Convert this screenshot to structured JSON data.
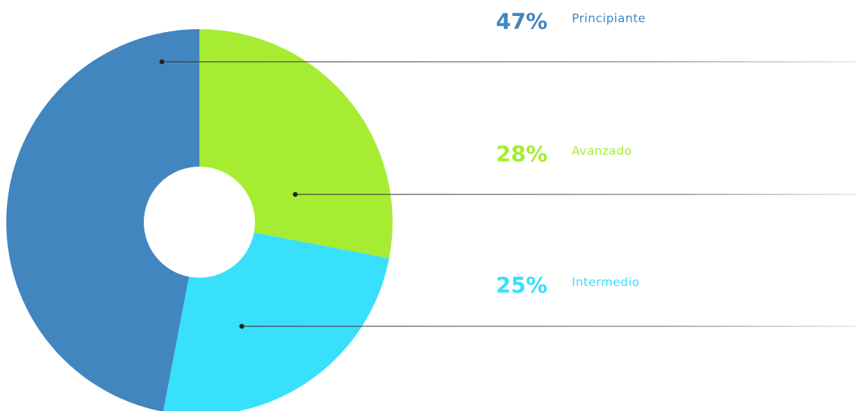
{
  "chart_data": {
    "type": "pie",
    "donut": true,
    "categories": [
      "Principiante",
      "Avanzado",
      "Intermedio"
    ],
    "values": [
      47,
      28,
      25
    ],
    "value_labels": [
      "47%",
      "28%",
      "25%"
    ],
    "colors": [
      "#4286c0",
      "#a6ec32",
      "#38e0fc"
    ]
  }
}
